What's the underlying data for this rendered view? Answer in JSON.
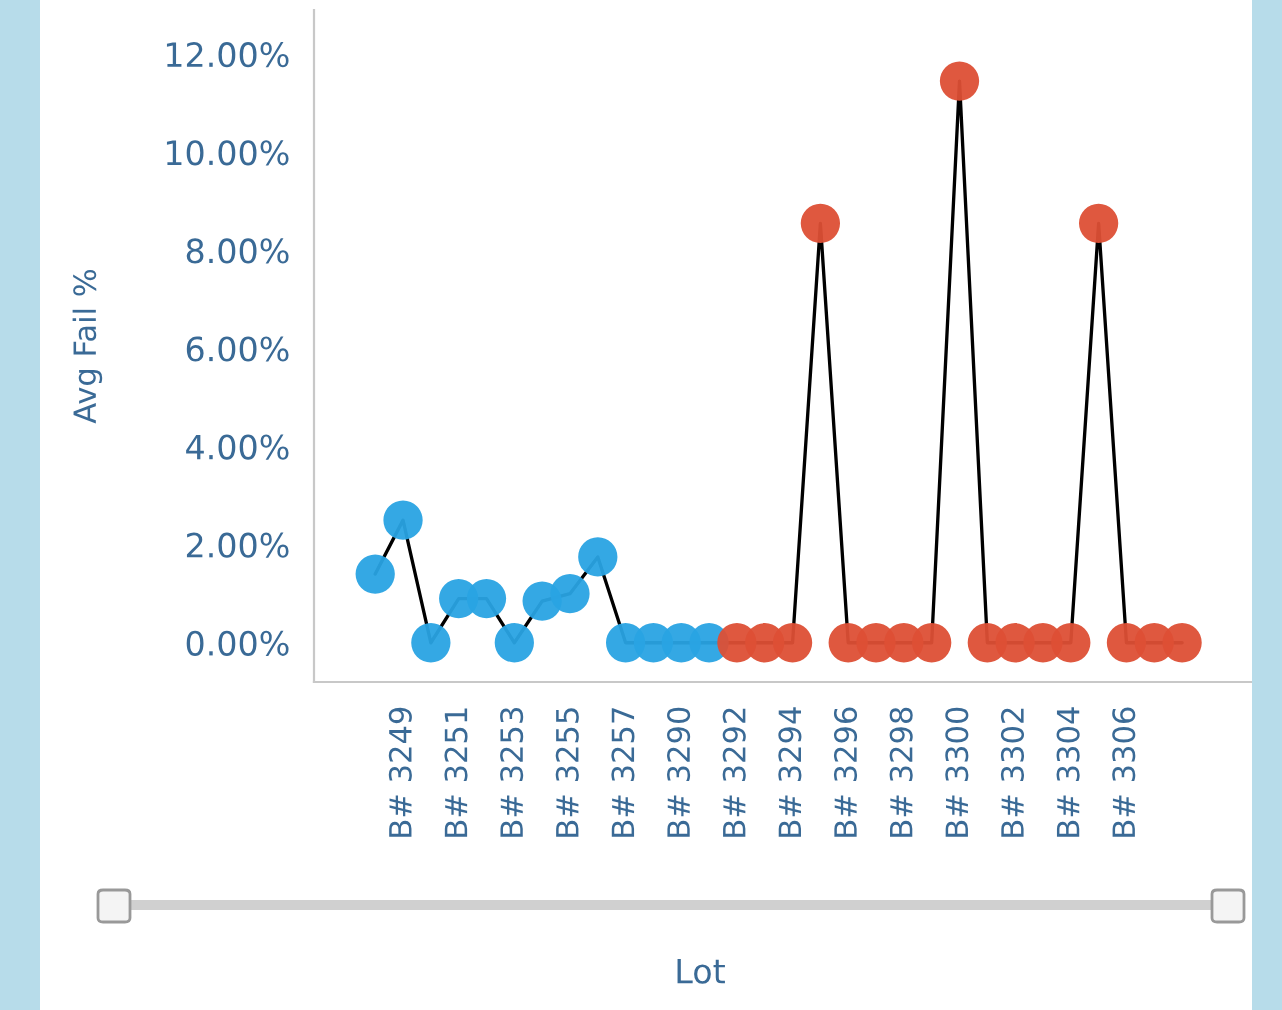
{
  "chart_data": {
    "type": "line",
    "xlabel": "Lot",
    "ylabel": "Avg Fail %",
    "categories": [
      null,
      "B# 3249",
      null,
      "B# 3251",
      null,
      "B# 3253",
      null,
      "B# 3255",
      null,
      "B# 3257",
      null,
      "B# 3290",
      null,
      "B# 3292",
      null,
      "B# 3294",
      null,
      "B# 3296",
      null,
      "B# 3298",
      null,
      "B# 3300",
      null,
      "B# 3302",
      null,
      "B# 3304",
      null,
      "B# 3306",
      null,
      null
    ],
    "series": [
      {
        "color": "#000000",
        "values": [
          1.4,
          2.5,
          0,
          0.9,
          0.9,
          0,
          0.85,
          1.0,
          1.75,
          0,
          0,
          0,
          0,
          0,
          0,
          0,
          8.55,
          0,
          0,
          0,
          0,
          11.45,
          0,
          0,
          0,
          0,
          8.55,
          0,
          0,
          0
        ],
        "colors": [
          "#29a3e3",
          "#29a3e3",
          "#29a3e3",
          "#29a3e3",
          "#29a3e3",
          "#29a3e3",
          "#29a3e3",
          "#29a3e3",
          "#29a3e3",
          "#29a3e3",
          "#29a3e3",
          "#29a3e3",
          "#29a3e3",
          "#dd4f35",
          "#dd4f35",
          "#dd4f35",
          "#dd4f35",
          "#dd4f35",
          "#dd4f35",
          "#dd4f35",
          "#dd4f35",
          "#dd4f35",
          "#dd4f35",
          "#dd4f35",
          "#dd4f35",
          "#dd4f35",
          "#dd4f35",
          "#dd4f35",
          "#dd4f35",
          "#dd4f35"
        ]
      }
    ],
    "ylim": [
      -0.8,
      12.9
    ],
    "yticks": [
      {
        "value": 0,
        "label": "0.00%"
      },
      {
        "value": 2,
        "label": "2.00%"
      },
      {
        "value": 4,
        "label": "4.00%"
      },
      {
        "value": 6,
        "label": "6.00%"
      },
      {
        "value": 8,
        "label": "8.00%"
      },
      {
        "value": 10,
        "label": "10.00%"
      },
      {
        "value": 12,
        "label": "12.00%"
      }
    ],
    "marker": "circle",
    "grid": false,
    "legend": false
  }
}
